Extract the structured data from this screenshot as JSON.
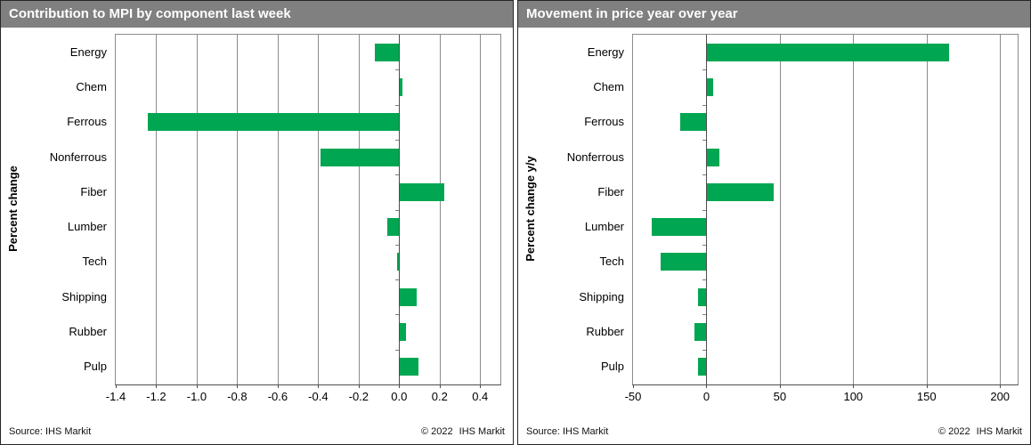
{
  "footer": {
    "source": "Source: IHS Markit",
    "copyright": "© 2022",
    "brand": "IHS Markit"
  },
  "colors": {
    "header_bg": "#808080",
    "header_text": "#ffffff",
    "bar_green": "#00a651"
  },
  "chart_data": [
    {
      "type": "bar",
      "orientation": "horizontal",
      "title": "Contribution to MPI by component last week",
      "ylabel": "Percent change",
      "categories": [
        "Energy",
        "Chem",
        "Ferrous",
        "Nonferrous",
        "Fiber",
        "Lumber",
        "Tech",
        "Shipping",
        "Rubber",
        "Pulp"
      ],
      "values": [
        -0.12,
        0.01,
        -1.24,
        -0.39,
        0.22,
        -0.06,
        -0.01,
        0.08,
        0.03,
        0.09
      ],
      "xlim": [
        -1.4,
        0.5
      ],
      "xticks": [
        -1.4,
        -1.2,
        -1.0,
        -0.8,
        -0.6,
        -0.4,
        -0.2,
        0.0,
        0.2,
        0.4
      ],
      "xtick_labels": [
        "-1.4",
        "-1.2",
        "-1.0",
        "-0.8",
        "-0.6",
        "-0.4",
        "-0.2",
        "0.0",
        "0.2",
        "0.4"
      ],
      "bar_color": "#00a651",
      "grid": true,
      "legend": "none"
    },
    {
      "type": "bar",
      "orientation": "horizontal",
      "title": "Movement in price year over year",
      "ylabel": "Percent change y/y",
      "categories": [
        "Energy",
        "Chem",
        "Ferrous",
        "Nonferrous",
        "Fiber",
        "Lumber",
        "Tech",
        "Shipping",
        "Rubber",
        "Pulp"
      ],
      "values": [
        165,
        4,
        -18,
        8,
        45,
        -37,
        -31,
        -6,
        -8,
        -6
      ],
      "xlim": [
        -50,
        212
      ],
      "xticks": [
        -50,
        0,
        50,
        100,
        150,
        200
      ],
      "xtick_labels": [
        "-50",
        "0",
        "50",
        "100",
        "150",
        "200"
      ],
      "bar_color": "#00a651",
      "grid": true,
      "legend": "none"
    }
  ]
}
